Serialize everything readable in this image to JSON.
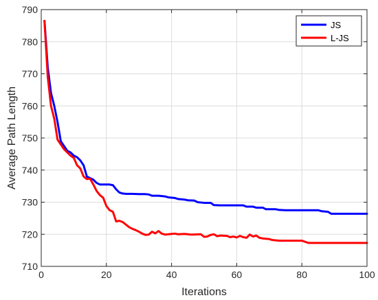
{
  "chart_data": {
    "type": "line",
    "title": "",
    "xlabel": "Iterations",
    "ylabel": "Average Path Length",
    "xlim": [
      0,
      100
    ],
    "ylim": [
      710,
      790
    ],
    "xticks": [
      0,
      20,
      40,
      60,
      80,
      100
    ],
    "yticks": [
      710,
      720,
      730,
      740,
      750,
      760,
      770,
      780,
      790
    ],
    "grid": true,
    "legend_position": "top-right",
    "series": [
      {
        "name": "JS",
        "color": "#0000ff",
        "points": [
          [
            1,
            786.5
          ],
          [
            2,
            772
          ],
          [
            3,
            764
          ],
          [
            4,
            760
          ],
          [
            5,
            755
          ],
          [
            6,
            749
          ],
          [
            7,
            747.5
          ],
          [
            8,
            746
          ],
          [
            9,
            745.5
          ],
          [
            10,
            744.5
          ],
          [
            11,
            744
          ],
          [
            12,
            743
          ],
          [
            13,
            741.5
          ],
          [
            14,
            738
          ],
          [
            15,
            737.5
          ],
          [
            16,
            737
          ],
          [
            17,
            736
          ],
          [
            18,
            735.5
          ],
          [
            19,
            735.5
          ],
          [
            20,
            735.5
          ],
          [
            21,
            735.5
          ],
          [
            22,
            735.3
          ],
          [
            23,
            734
          ],
          [
            24,
            733
          ],
          [
            25,
            732.7
          ],
          [
            26,
            732.6
          ],
          [
            28,
            732.6
          ],
          [
            30,
            732.5
          ],
          [
            32,
            732.5
          ],
          [
            33,
            732.4
          ],
          [
            34,
            732
          ],
          [
            36,
            732
          ],
          [
            38,
            731.8
          ],
          [
            39,
            731.5
          ],
          [
            41,
            731.3
          ],
          [
            42,
            731
          ],
          [
            44,
            730.8
          ],
          [
            45,
            730.6
          ],
          [
            47,
            730.5
          ],
          [
            48,
            730
          ],
          [
            50,
            729.8
          ],
          [
            52,
            729.8
          ],
          [
            53,
            729.1
          ],
          [
            55,
            729
          ],
          [
            62,
            729
          ],
          [
            63,
            728.6
          ],
          [
            65,
            728.6
          ],
          [
            66,
            728.3
          ],
          [
            68,
            728.3
          ],
          [
            69,
            727.8
          ],
          [
            72,
            727.8
          ],
          [
            73,
            727.6
          ],
          [
            75,
            727.5
          ],
          [
            85,
            727.5
          ],
          [
            86,
            727.2
          ],
          [
            88,
            727
          ],
          [
            89,
            726.4
          ],
          [
            100,
            726.4
          ]
        ]
      },
      {
        "name": "L-JS",
        "color": "#ff0000",
        "points": [
          [
            1,
            786.5
          ],
          [
            2,
            769
          ],
          [
            3,
            760
          ],
          [
            4,
            756
          ],
          [
            5,
            749.5
          ],
          [
            6,
            748
          ],
          [
            7,
            746.5
          ],
          [
            8,
            745.5
          ],
          [
            9,
            744.5
          ],
          [
            10,
            743.8
          ],
          [
            11,
            741.5
          ],
          [
            12,
            740.5
          ],
          [
            13,
            738
          ],
          [
            14,
            737.2
          ],
          [
            15,
            737.3
          ],
          [
            16,
            735.5
          ],
          [
            17,
            733.5
          ],
          [
            18,
            732.2
          ],
          [
            19,
            731.4
          ],
          [
            20,
            728.8
          ],
          [
            21,
            727.5
          ],
          [
            22,
            727
          ],
          [
            23,
            724
          ],
          [
            24,
            724.2
          ],
          [
            25,
            723.8
          ],
          [
            26,
            723
          ],
          [
            27,
            722.2
          ],
          [
            28,
            721.7
          ],
          [
            29,
            721.3
          ],
          [
            30,
            720.8
          ],
          [
            31,
            720.2
          ],
          [
            32,
            719.8
          ],
          [
            33,
            719.9
          ],
          [
            34,
            720.8
          ],
          [
            35,
            720.3
          ],
          [
            36,
            721
          ],
          [
            37,
            720.2
          ],
          [
            38,
            719.9
          ],
          [
            40,
            720.1
          ],
          [
            41,
            720.2
          ],
          [
            42,
            720
          ],
          [
            44,
            720.1
          ],
          [
            46,
            719.9
          ],
          [
            49,
            720
          ],
          [
            50,
            719.2
          ],
          [
            51,
            719.3
          ],
          [
            52,
            719.8
          ],
          [
            53,
            720
          ],
          [
            54,
            719.4
          ],
          [
            55,
            719.6
          ],
          [
            57,
            719.5
          ],
          [
            58,
            719.1
          ],
          [
            59,
            719.3
          ],
          [
            60,
            719
          ],
          [
            61,
            719.5
          ],
          [
            62,
            719.1
          ],
          [
            63,
            718.9
          ],
          [
            64,
            719.9
          ],
          [
            65,
            719.3
          ],
          [
            66,
            719.6
          ],
          [
            67,
            718.9
          ],
          [
            68,
            718.7
          ],
          [
            70,
            718.5
          ],
          [
            71,
            718.2
          ],
          [
            73,
            718
          ],
          [
            80,
            718
          ],
          [
            82,
            717.3
          ],
          [
            100,
            717.3
          ]
        ]
      }
    ]
  }
}
